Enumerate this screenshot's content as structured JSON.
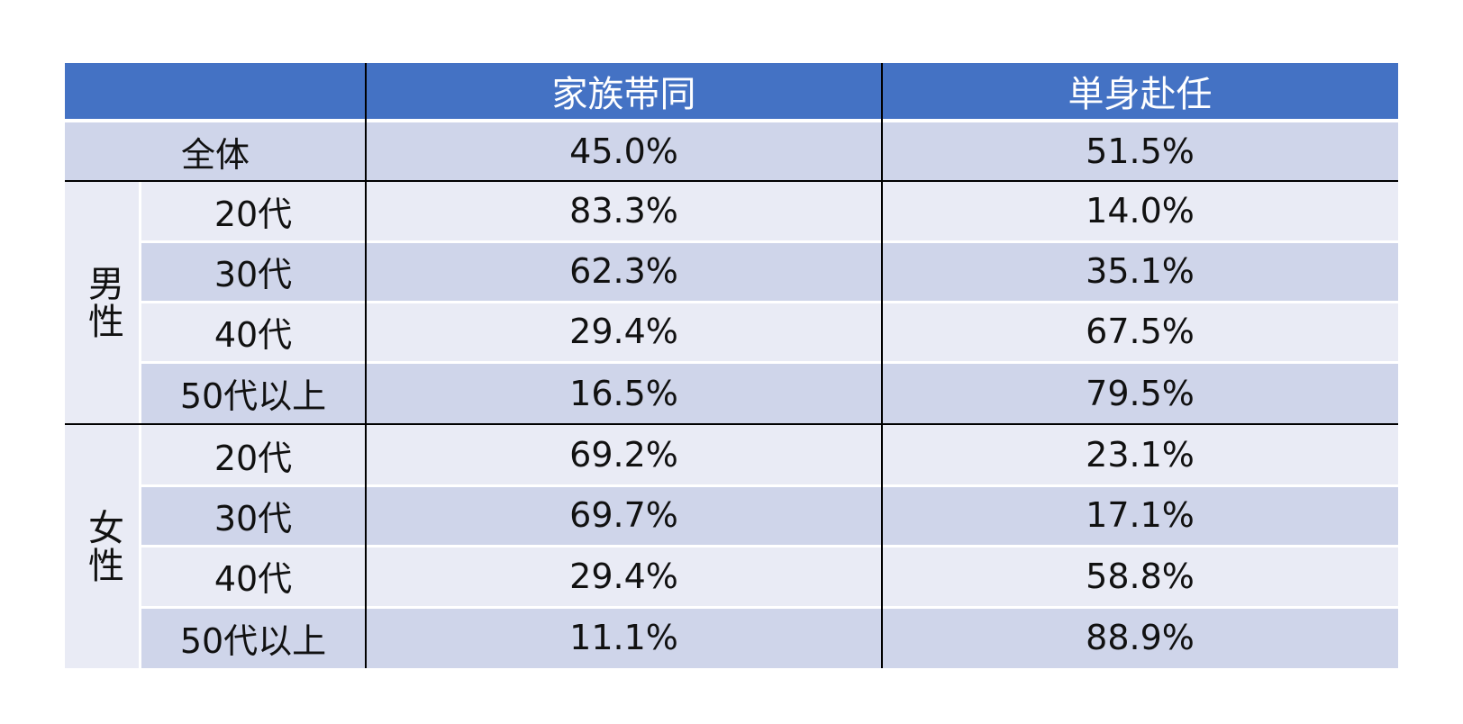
{
  "table": {
    "headers": [
      "",
      "家族帯同",
      "単身赴任"
    ],
    "overall": {
      "label": "全体",
      "family": "45.0%",
      "single": "51.5%"
    },
    "groups": [
      {
        "label": "男性",
        "rows": [
          {
            "age": "20代",
            "family": "83.3%",
            "single": "14.0%"
          },
          {
            "age": "30代",
            "family": "62.3%",
            "single": "35.1%"
          },
          {
            "age": "40代",
            "family": "29.4%",
            "single": "67.5%"
          },
          {
            "age": "50代以上",
            "family": "16.5%",
            "single": "79.5%"
          }
        ]
      },
      {
        "label": "女性",
        "rows": [
          {
            "age": "20代",
            "family": "69.2%",
            "single": "23.1%"
          },
          {
            "age": "30代",
            "family": "69.7%",
            "single": "17.1%"
          },
          {
            "age": "40代",
            "family": "29.4%",
            "single": "58.8%"
          },
          {
            "age": "50代以上",
            "family": "11.1%",
            "single": "88.9%"
          }
        ]
      }
    ]
  },
  "chart_data": {
    "type": "table",
    "columns": [
      "家族帯同",
      "単身赴任"
    ],
    "rows": [
      {
        "group": "",
        "label": "全体",
        "values": [
          "45.0%",
          "51.5%"
        ]
      },
      {
        "group": "男性",
        "label": "20代",
        "values": [
          "83.3%",
          "14.0%"
        ]
      },
      {
        "group": "男性",
        "label": "30代",
        "values": [
          "62.3%",
          "35.1%"
        ]
      },
      {
        "group": "男性",
        "label": "40代",
        "values": [
          "29.4%",
          "67.5%"
        ]
      },
      {
        "group": "男性",
        "label": "50代以上",
        "values": [
          "16.5%",
          "79.5%"
        ]
      },
      {
        "group": "女性",
        "label": "20代",
        "values": [
          "69.2%",
          "23.1%"
        ]
      },
      {
        "group": "女性",
        "label": "30代",
        "values": [
          "69.7%",
          "17.1%"
        ]
      },
      {
        "group": "女性",
        "label": "40代",
        "values": [
          "29.4%",
          "58.8%"
        ]
      },
      {
        "group": "女性",
        "label": "50代以上",
        "values": [
          "11.1%",
          "88.9%"
        ]
      }
    ]
  },
  "colors": {
    "header": "#4472c4",
    "row_dark": "#cfd5ea",
    "row_light": "#e9ebf5",
    "header_text": "#ffffff"
  }
}
